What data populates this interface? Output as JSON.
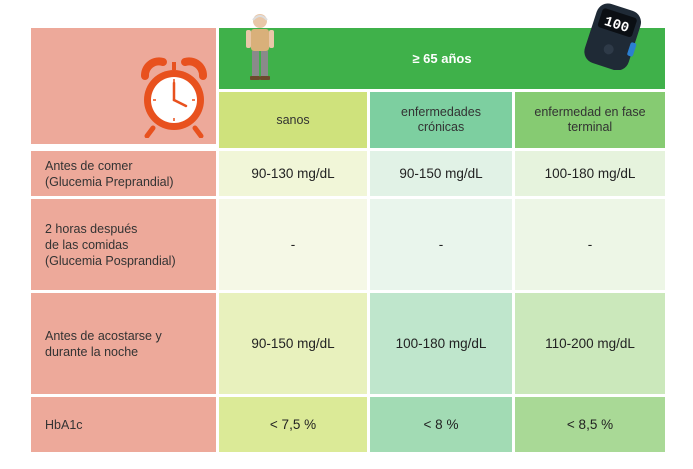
{
  "header": {
    "age_group": "≥ 65 años",
    "columns": [
      "sanos",
      "enfermedades\ncrónicas",
      "enfermedad en fase\nterminal"
    ]
  },
  "rows": [
    {
      "label": "Antes de comer\n(Glucemia Preprandial)",
      "values": [
        "90-130 mg/dL",
        "90-150 mg/dL",
        "100-180 mg/dL"
      ]
    },
    {
      "label": "2 horas después\nde las comidas\n(Glucemia Posprandial)",
      "values": [
        "-",
        "-",
        "-"
      ]
    },
    {
      "label": "Antes de acostarse y\ndurante la noche",
      "values": [
        "90-150 mg/dL",
        "100-180 mg/dL",
        "110-200 mg/dL"
      ]
    },
    {
      "label": "HbA1c",
      "values": [
        "< 7,5 %",
        "< 8 %",
        "< 8,5 %"
      ]
    }
  ],
  "glucometer_display": "100",
  "icons": [
    "alarm-clock-icon",
    "elderly-man-icon",
    "glucometer-icon"
  ],
  "colors": {
    "label_bg": "#eda99a",
    "header_green": "#3fb14a",
    "col1": "#cfe27c",
    "col2": "#7dcfa0",
    "col3": "#86cb72"
  }
}
